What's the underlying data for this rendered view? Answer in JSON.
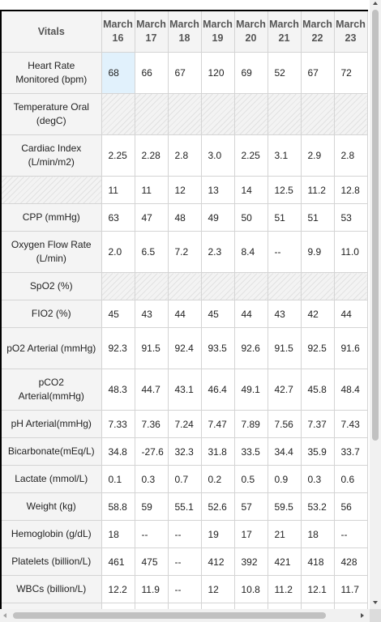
{
  "table": {
    "corner_label": "Vitals",
    "columns": [
      "March 16",
      "March 17",
      "March 18",
      "March 19",
      "March 20",
      "March 21",
      "March 22",
      "March 23"
    ],
    "rows": [
      {
        "label": "Heart Rate Monitored (bpm)",
        "values": [
          "68",
          "66",
          "67",
          "120",
          "69",
          "52",
          "67",
          "72"
        ]
      },
      {
        "label": "Temperature Oral (degC)",
        "values": [
          "",
          "",
          "",
          "",
          "",
          "",
          "",
          ""
        ],
        "hatched": true
      },
      {
        "label": "Cardiac Index (L/min/m2)",
        "values": [
          "2.25",
          "2.28",
          "2.8",
          "3.0",
          "2.25",
          "3.1",
          "2.9",
          "2.8"
        ]
      },
      {
        "label": "",
        "values": [
          "11",
          "11",
          "12",
          "13",
          "14",
          "12.5",
          "11.2",
          "12.8"
        ],
        "label_hatched": true
      },
      {
        "label": "CPP (mmHg)",
        "values": [
          "63",
          "47",
          "48",
          "49",
          "50",
          "51",
          "51",
          "53"
        ]
      },
      {
        "label": "Oxygen Flow Rate (L/min)",
        "values": [
          "2.0",
          "6.5",
          "7.2",
          "2.3",
          "8.4",
          "--",
          "9.9",
          "11.0"
        ]
      },
      {
        "label": "SpO2 (%)",
        "values": [
          "",
          "",
          "",
          "",
          "",
          "",
          "",
          ""
        ],
        "hatched": true
      },
      {
        "label": "FIO2 (%)",
        "values": [
          "45",
          "43",
          "44",
          "45",
          "44",
          "43",
          "42",
          "44"
        ]
      },
      {
        "label": "pO2 Arterial (mmHg)",
        "values": [
          "92.3",
          "91.5",
          "92.4",
          "93.5",
          "92.6",
          "91.5",
          "92.5",
          "91.6"
        ]
      },
      {
        "label": "pCO2 Arterial(mmHg)",
        "values": [
          "48.3",
          "44.7",
          "43.1",
          "46.4",
          "49.1",
          "42.7",
          "45.8",
          "48.4"
        ]
      },
      {
        "label": "pH Arterial(mmHg)",
        "values": [
          "7.33",
          "7.36",
          "7.24",
          "7.47",
          "7.89",
          "7.56",
          "7.37",
          "7.43"
        ]
      },
      {
        "label": "Bicarbonate(mEq/L)",
        "values": [
          "34.8",
          "-27.6",
          "32.3",
          "31.8",
          "33.5",
          "34.4",
          "35.9",
          "33.7"
        ]
      },
      {
        "label": "Lactate (mmol/L)",
        "values": [
          "0.1",
          "0.3",
          "0.7",
          "0.2",
          "0.5",
          "0.9",
          "0.3",
          "0.6"
        ]
      },
      {
        "label": "Weight (kg)",
        "values": [
          "58.8",
          "59",
          "55.1",
          "52.6",
          "57",
          "59.5",
          "53.2",
          "56"
        ]
      },
      {
        "label": "Hemoglobin (g/dL)",
        "values": [
          "18",
          "--",
          "--",
          "19",
          "17",
          "21",
          "18",
          "--"
        ]
      },
      {
        "label": "Platelets (billion/L)",
        "values": [
          "461",
          "475",
          "--",
          "412",
          "392",
          "421",
          "418",
          "428"
        ]
      },
      {
        "label": "WBCs (billion/L)",
        "values": [
          "12.2",
          "11.9",
          "--",
          "12",
          "10.8",
          "11.2",
          "12.1",
          "11.7"
        ]
      },
      {
        "label": "",
        "values": [
          "",
          "",
          "",
          "",
          "",
          "",
          "",
          ""
        ]
      }
    ]
  },
  "colors": {
    "selected_cell": "#e1f1fc",
    "header_bg": "#f4f4f4",
    "grid_line": "#d4d4d4"
  }
}
